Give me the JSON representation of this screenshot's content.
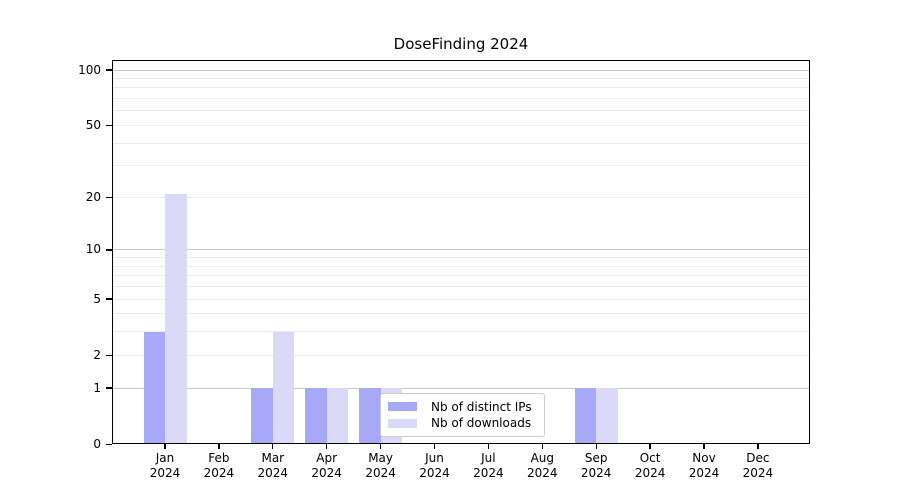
{
  "chart_data": {
    "type": "bar",
    "title": "DoseFinding 2024",
    "categories": [
      "Jan 2024",
      "Feb 2024",
      "Mar 2024",
      "Apr 2024",
      "May 2024",
      "Jun 2024",
      "Jul 2024",
      "Aug 2024",
      "Sep 2024",
      "Oct 2024",
      "Nov 2024",
      "Dec 2024"
    ],
    "series": [
      {
        "name": "Nb of distinct IPs",
        "color": "#a8a8f8",
        "values": [
          3,
          0,
          1,
          1,
          1,
          0,
          0,
          0,
          1,
          0,
          0,
          0
        ]
      },
      {
        "name": "Nb of downloads",
        "color": "#dadaf8",
        "values": [
          21,
          0,
          3,
          1,
          1,
          0,
          0,
          0,
          1,
          0,
          0,
          0
        ]
      }
    ],
    "xlabel": "",
    "ylabel": "",
    "yscale": "log1p",
    "ylim": [
      0,
      111
    ],
    "yticks": [
      0,
      1,
      2,
      5,
      10,
      20,
      50,
      100
    ],
    "grid": true,
    "grid_major_values": [
      1,
      10,
      100
    ],
    "grid_minor_values": [
      2,
      3,
      4,
      5,
      6,
      7,
      8,
      9,
      20,
      30,
      40,
      50,
      60,
      70,
      80,
      90
    ],
    "grid_major_color": "#c8c8c8",
    "grid_minor_color": "#ebebeb",
    "axis_color": "#000000",
    "legend_position": "inside lower center"
  }
}
